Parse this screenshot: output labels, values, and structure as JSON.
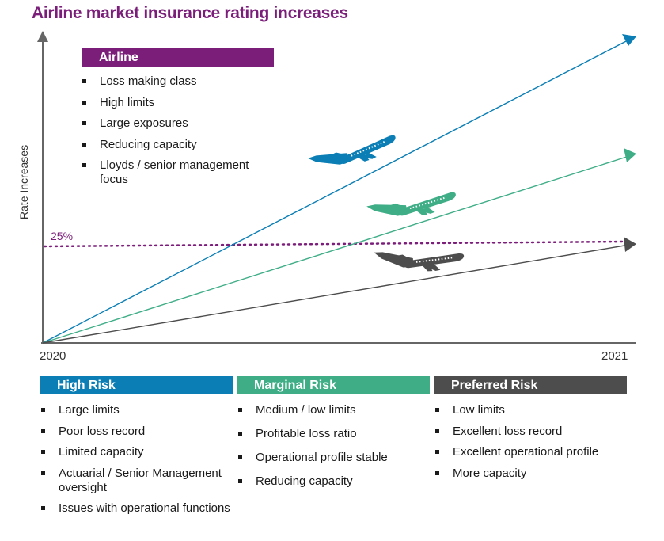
{
  "title": "Airline market insurance rating increases",
  "y_axis_label": "Rate Increases",
  "threshold_label": "25%",
  "x_axis": {
    "start": "2020",
    "end": "2021"
  },
  "colors": {
    "title": "#7b1e7a",
    "high": "#0a7eb5",
    "marginal": "#3fae87",
    "preferred": "#4d4d4d",
    "threshold": "#7b1e7a"
  },
  "airline": {
    "header": "Airline",
    "items": [
      "Loss making class",
      "High limits",
      "Large exposures",
      "Reducing capacity",
      "Lloyds / senior management focus"
    ]
  },
  "high_risk": {
    "header": "High Risk",
    "items": [
      "Large limits",
      "Poor loss record",
      "Limited capacity",
      "Actuarial / Senior Management oversight",
      "Issues with operational functions"
    ]
  },
  "marginal_risk": {
    "header": "Marginal Risk",
    "items": [
      "Medium / low limits",
      "Profitable loss ratio",
      "Operational profile stable",
      "Reducing capacity"
    ]
  },
  "preferred_risk": {
    "header": "Preferred Risk",
    "items": [
      "Low limits",
      "Excellent loss record",
      "Excellent operational profile",
      "More capacity"
    ]
  }
}
